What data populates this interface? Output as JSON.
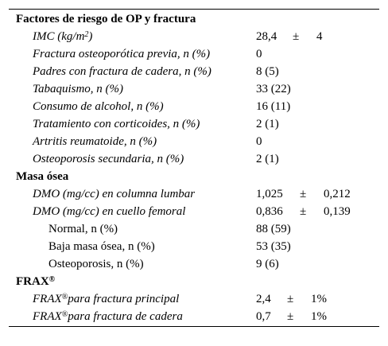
{
  "sections": {
    "op": {
      "title": "Factores de riesgo de OP y fractura",
      "rows": [
        {
          "label_pre": "IMC (kg/m",
          "label_sup": "2",
          "label_post": ")",
          "value": "28,4",
          "pm": "±",
          "sd": "4"
        },
        {
          "label": "Fractura osteoporótica previa, n (%)",
          "value": "0"
        },
        {
          "label": "Padres con fractura de cadera, n (%)",
          "value": "8 (5)"
        },
        {
          "label": "Tabaquismo, n (%)",
          "value": "33 (22)"
        },
        {
          "label": "Consumo de alcohol, n (%)",
          "value": "16 (11)"
        },
        {
          "label": "Tratamiento con corticoides, n (%)",
          "value": "2 (1)"
        },
        {
          "label": "Artritis reumatoide, n (%)",
          "value": "0"
        },
        {
          "label": "Osteoporosis secundaria, n (%)",
          "value": "2 (1)"
        }
      ]
    },
    "bone": {
      "title": "Masa ósea",
      "rows": [
        {
          "label": "DMO (mg/cc) en columna lumbar",
          "value": "1,025",
          "pm": "±",
          "sd": "0,212"
        },
        {
          "label": "DMO (mg/cc) en cuello femoral",
          "value": "0,836",
          "pm": "±",
          "sd": "0,139"
        },
        {
          "label": "Normal, n (%)",
          "value": "88 (59)"
        },
        {
          "label": "Baja masa ósea, n (%)",
          "value": "53 (35)"
        },
        {
          "label": "Osteoporosis, n (%)",
          "value": "9 (6)"
        }
      ]
    },
    "frax": {
      "title": "FRAX",
      "title_sup": "®",
      "rows": [
        {
          "label_pre": "FRAX",
          "label_sup": "®",
          "label_post": "para fractura principal",
          "value": "2,4",
          "pm": "±",
          "sd": "1%"
        },
        {
          "label_pre": "FRAX",
          "label_sup": "®",
          "label_post": "para fractura de cadera",
          "value": "0,7",
          "pm": "±",
          "sd": "1%"
        }
      ]
    }
  }
}
